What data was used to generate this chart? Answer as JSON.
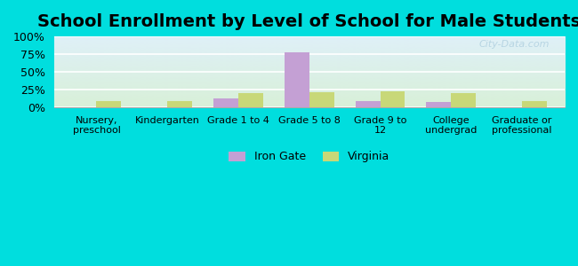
{
  "title": "School Enrollment by Level of School for Male Students",
  "categories": [
    "Nursery,\npreschool",
    "Kindergarten",
    "Grade 1 to 4",
    "Grade 5 to 8",
    "Grade 9 to\n12",
    "College\nundergrad",
    "Graduate or\nprofessional"
  ],
  "iron_gate": [
    0,
    0,
    12,
    78,
    8,
    7,
    0
  ],
  "virginia": [
    8,
    8,
    20,
    21,
    22,
    20,
    9
  ],
  "iron_gate_color": "#c4a0d4",
  "virginia_color": "#c8d878",
  "background_outer": "#00dede",
  "background_plot_top": "#dff0f8",
  "background_plot_bottom": "#d8f0d8",
  "title_fontsize": 14,
  "legend_labels": [
    "Iron Gate",
    "Virginia"
  ],
  "ylim": [
    0,
    100
  ],
  "yticks": [
    0,
    25,
    50,
    75,
    100
  ],
  "ytick_labels": [
    "0%",
    "25%",
    "50%",
    "75%",
    "100%"
  ],
  "bar_width": 0.35,
  "watermark": "City-Data.com"
}
